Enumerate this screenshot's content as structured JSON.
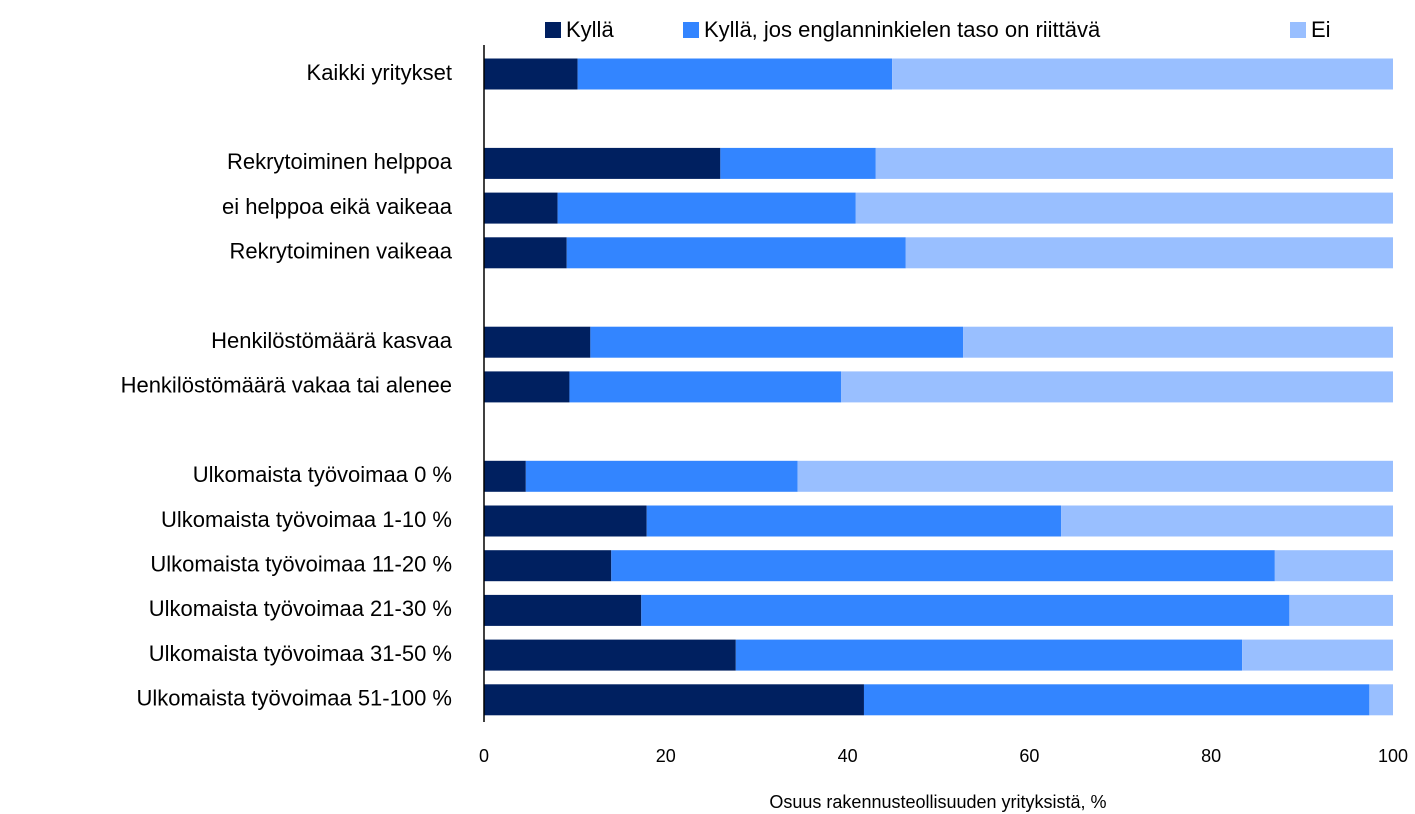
{
  "chart_data": {
    "type": "stacked_barh",
    "xlabel": "Osuus rakennusteollisuuden yrityksistä, %",
    "categories": [
      "Kaikki yritykset",
      null,
      "Rekrytoiminen helppoa",
      "ei helppoa eikä vaikeaa",
      "Rekrytoiminen vaikeaa",
      null,
      "Henkilöstömäärä kasvaa",
      "Henkilöstömäärä vakaa tai alenee",
      null,
      "Ulkomaista työvoimaa 0 %",
      "Ulkomaista työvoimaa 1-10 %",
      "Ulkomaista työvoimaa 11-20 %",
      "Ulkomaista työvoimaa 21-30 %",
      "Ulkomaista työvoimaa 31-50 %",
      "Ulkomaista työvoimaa 51-100 %"
    ],
    "series": [
      {
        "name": "Kyllä",
        "color": "#002060",
        "values": [
          10.3,
          null,
          26.0,
          8.1,
          9.1,
          null,
          11.7,
          9.4,
          null,
          4.6,
          17.9,
          14.0,
          17.3,
          27.7,
          41.8
        ]
      },
      {
        "name": "Kyllä, jos englanninkielen taso on riittävä",
        "color": "#3385ff",
        "values": [
          34.6,
          null,
          17.1,
          32.8,
          37.3,
          null,
          41.0,
          29.9,
          null,
          29.9,
          45.6,
          73.0,
          71.3,
          55.7,
          55.6
        ]
      },
      {
        "name": "Ei",
        "color": "#99bfff",
        "values": [
          55.1,
          null,
          56.9,
          59.1,
          53.6,
          null,
          47.3,
          60.7,
          null,
          65.5,
          36.5,
          13.0,
          11.4,
          16.6,
          2.6
        ]
      }
    ],
    "xlim": [
      0,
      100
    ],
    "xticks": [
      0,
      20,
      40,
      60,
      80,
      100
    ],
    "legend": "top"
  }
}
